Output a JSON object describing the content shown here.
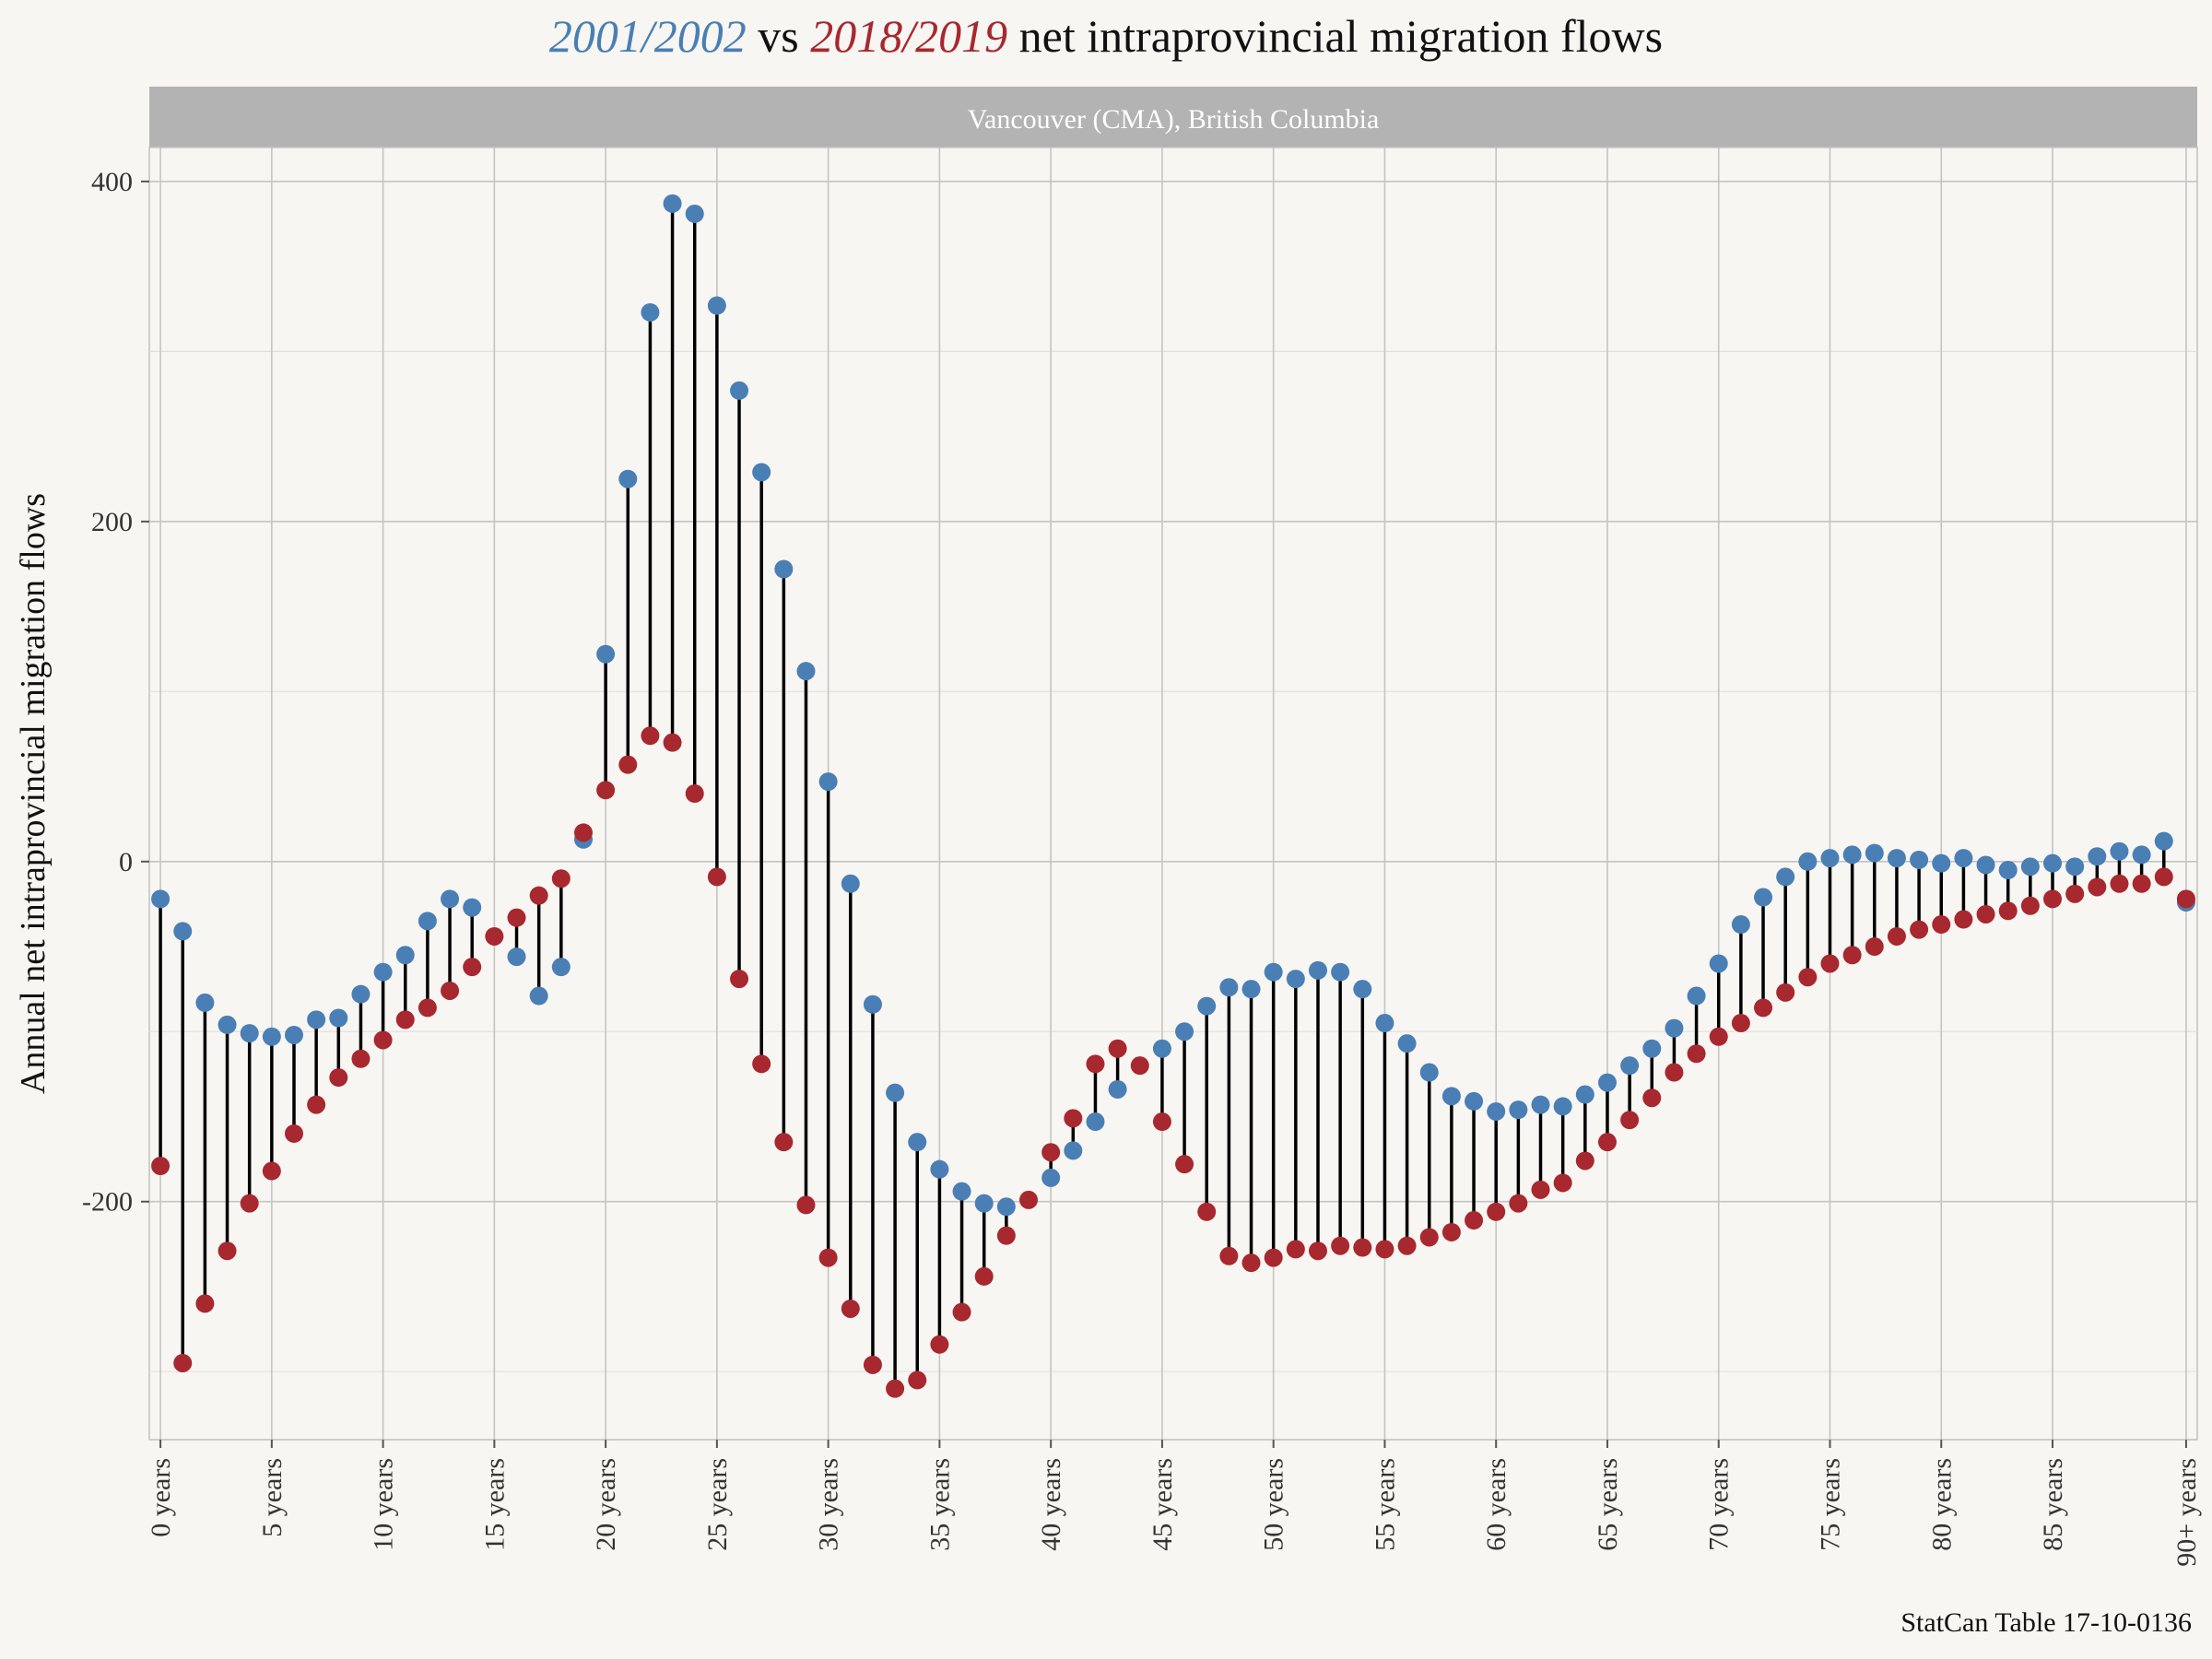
{
  "chart_data": {
    "type": "scatter",
    "title": {
      "series_a": "2001/2002",
      "vs": " vs ",
      "series_b": "2018/2019",
      "rest": " net intraprovincial migration flows"
    },
    "facet_label": "Vancouver (CMA), British Columbia",
    "ylabel": "Annual net intraprovincial migration flows",
    "xlabel": "",
    "caption": "StatCan Table 17-10-0136",
    "ylim": [
      -340,
      420
    ],
    "y_ticks": [
      -200,
      0,
      200,
      400
    ],
    "grid": true,
    "x_ticks": [
      {
        "pos": 1,
        "label": "0 years"
      },
      {
        "pos": 6,
        "label": "5 years"
      },
      {
        "pos": 11,
        "label": "10 years"
      },
      {
        "pos": 16,
        "label": "15 years"
      },
      {
        "pos": 21,
        "label": "20 years"
      },
      {
        "pos": 26,
        "label": "25 years"
      },
      {
        "pos": 31,
        "label": "30 years"
      },
      {
        "pos": 36,
        "label": "35 years"
      },
      {
        "pos": 41,
        "label": "40 years"
      },
      {
        "pos": 46,
        "label": "45 years"
      },
      {
        "pos": 51,
        "label": "50 years"
      },
      {
        "pos": 56,
        "label": "55 years"
      },
      {
        "pos": 61,
        "label": "60 years"
      },
      {
        "pos": 66,
        "label": "65 years"
      },
      {
        "pos": 71,
        "label": "70 years"
      },
      {
        "pos": 76,
        "label": "75 years"
      },
      {
        "pos": 81,
        "label": "80 years"
      },
      {
        "pos": 86,
        "label": "85 years"
      },
      {
        "pos": 92,
        "label": "90+ years"
      }
    ],
    "series": [
      {
        "name": "2001/2002",
        "color": "#4a7fb5",
        "values": [
          -22,
          -41,
          -83,
          -96,
          -101,
          -103,
          -102,
          -93,
          -92,
          -78,
          -65,
          -55,
          -35,
          -22,
          -27,
          null,
          -56,
          -79,
          -62,
          13,
          122,
          225,
          323,
          387,
          381,
          327,
          277,
          229,
          172,
          112,
          47,
          -13,
          -84,
          -136,
          -165,
          -181,
          -194,
          -201,
          -203,
          null,
          -186,
          -170,
          -153,
          -134,
          null,
          -110,
          -100,
          -85,
          -74,
          -75,
          -65,
          -69,
          -64,
          -65,
          -75,
          -95,
          -107,
          -124,
          -138,
          -141,
          -147,
          -146,
          -143,
          -144,
          -137,
          -130,
          -120,
          -110,
          -98,
          -79,
          -60,
          -37,
          -21,
          -9,
          0,
          2,
          4,
          5,
          2,
          1,
          -1,
          2,
          -2,
          -5,
          -3,
          -1,
          -3,
          3,
          6,
          4,
          12,
          -24
        ]
      },
      {
        "name": "2018/2019",
        "color": "#a8282f",
        "values": [
          -179,
          -295,
          -260,
          -229,
          -201,
          -182,
          -160,
          -143,
          -127,
          -116,
          -105,
          -93,
          -86,
          -76,
          -62,
          -44,
          -33,
          -20,
          -10,
          17,
          42,
          57,
          74,
          70,
          40,
          -9,
          -69,
          -119,
          -165,
          -202,
          -233,
          -263,
          -296,
          -310,
          -305,
          -284,
          -265,
          -244,
          -220,
          -199,
          -171,
          -151,
          -119,
          -110,
          -120,
          -153,
          -178,
          -206,
          -232,
          -236,
          -233,
          -228,
          -229,
          -226,
          -227,
          -228,
          -226,
          -221,
          -218,
          -211,
          -206,
          -201,
          -193,
          -189,
          -176,
          -165,
          -152,
          -139,
          -124,
          -113,
          -103,
          -95,
          -86,
          -77,
          -68,
          -60,
          -55,
          -50,
          -44,
          -40,
          -37,
          -34,
          -31,
          -29,
          -26,
          -22,
          -19,
          -15,
          -13,
          -13,
          -9,
          -22
        ]
      }
    ]
  }
}
